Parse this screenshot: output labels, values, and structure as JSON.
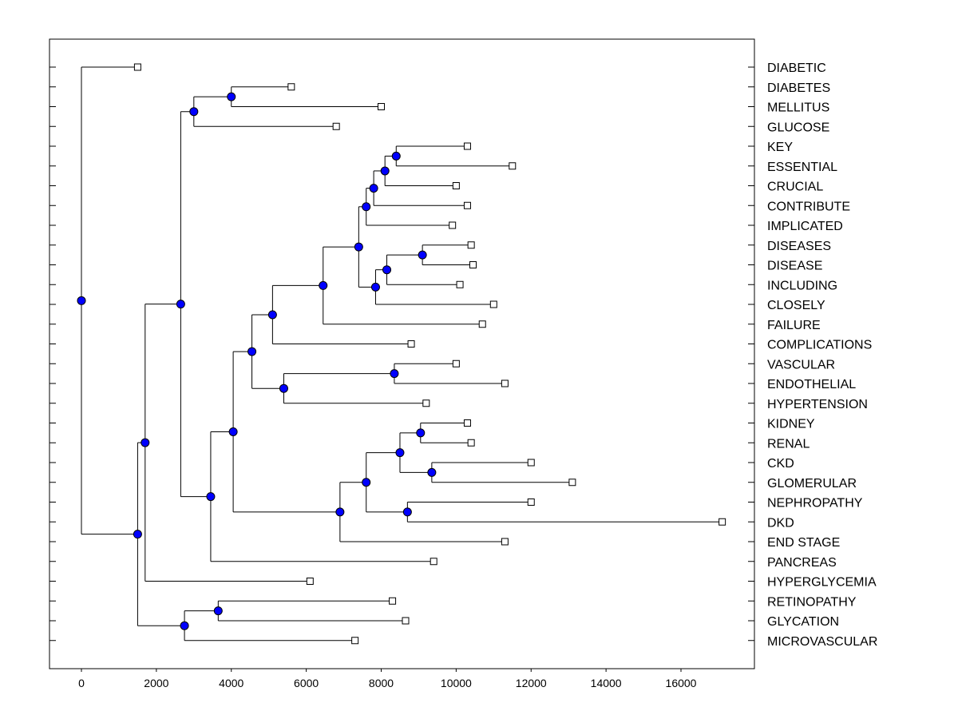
{
  "chart_data": {
    "type": "dendrogram",
    "title": "",
    "xlabel": "",
    "ylabel": "",
    "xlim": [
      -800,
      18000
    ],
    "x_ticks": [
      0,
      2000,
      4000,
      6000,
      8000,
      10000,
      12000,
      14000,
      16000
    ],
    "tick_labels": [
      "0",
      "2000",
      "4000",
      "6000",
      "8000",
      "10000",
      "12000",
      "14000",
      "16000"
    ],
    "leaves": [
      {
        "label": "DIABETIC",
        "value": 1500
      },
      {
        "label": "DIABETES",
        "value": 5600
      },
      {
        "label": "MELLITUS",
        "value": 8000
      },
      {
        "label": "GLUCOSE",
        "value": 6800
      },
      {
        "label": "KEY",
        "value": 10300
      },
      {
        "label": "ESSENTIAL",
        "value": 11500
      },
      {
        "label": "CRUCIAL",
        "value": 10000
      },
      {
        "label": "CONTRIBUTE",
        "value": 10300
      },
      {
        "label": "IMPLICATED",
        "value": 9900
      },
      {
        "label": "DISEASES",
        "value": 10400
      },
      {
        "label": "DISEASE",
        "value": 10450
      },
      {
        "label": "INCLUDING",
        "value": 10100
      },
      {
        "label": "CLOSELY",
        "value": 11000
      },
      {
        "label": "FAILURE",
        "value": 10700
      },
      {
        "label": "COMPLICATIONS",
        "value": 8800
      },
      {
        "label": "VASCULAR",
        "value": 10000
      },
      {
        "label": "ENDOTHELIAL",
        "value": 11300
      },
      {
        "label": "HYPERTENSION",
        "value": 9200
      },
      {
        "label": "KIDNEY",
        "value": 10300
      },
      {
        "label": "RENAL",
        "value": 10400
      },
      {
        "label": "CKD",
        "value": 12000
      },
      {
        "label": "GLOMERULAR",
        "value": 13100
      },
      {
        "label": "NEPHROPATHY",
        "value": 12000
      },
      {
        "label": "DKD",
        "value": 17100
      },
      {
        "label": "END STAGE",
        "value": 11300
      },
      {
        "label": "PANCREAS",
        "value": 9400
      },
      {
        "label": "HYPERGLYCEMIA",
        "value": 6100
      },
      {
        "label": "RETINOPATHY",
        "value": 8300
      },
      {
        "label": "GLYCATION",
        "value": 8650
      },
      {
        "label": "MICROVASCULAR",
        "value": 7300
      }
    ],
    "nodes": [
      {
        "id": "n_dm",
        "value": 4000,
        "children": [
          "L1",
          "L2"
        ]
      },
      {
        "id": "n_dmg",
        "value": 3000,
        "children": [
          "n_dm",
          "L3"
        ]
      },
      {
        "id": "n_ke",
        "value": 8400,
        "children": [
          "L4",
          "L5"
        ]
      },
      {
        "id": "n_kec",
        "value": 8100,
        "children": [
          "n_ke",
          "L6"
        ]
      },
      {
        "id": "n_kecc",
        "value": 7800,
        "children": [
          "n_kec",
          "L7"
        ]
      },
      {
        "id": "n_keci",
        "value": 7600,
        "children": [
          "n_kecc",
          "L8"
        ]
      },
      {
        "id": "n_dd",
        "value": 9100,
        "children": [
          "L9",
          "L10"
        ]
      },
      {
        "id": "n_ddi",
        "value": 8150,
        "children": [
          "n_dd",
          "L11"
        ]
      },
      {
        "id": "n_ddic",
        "value": 7850,
        "children": [
          "n_ddi",
          "L12"
        ]
      },
      {
        "id": "n_big1",
        "value": 7400,
        "children": [
          "n_keci",
          "n_ddic"
        ]
      },
      {
        "id": "n_big1f",
        "value": 6450,
        "children": [
          "n_big1",
          "L13"
        ]
      },
      {
        "id": "n_big1fc",
        "value": 5100,
        "children": [
          "n_big1f",
          "L14"
        ]
      },
      {
        "id": "n_ve",
        "value": 8350,
        "children": [
          "L15",
          "L16"
        ]
      },
      {
        "id": "n_veh",
        "value": 5400,
        "children": [
          "n_ve",
          "L17"
        ]
      },
      {
        "id": "n_mid",
        "value": 4550,
        "children": [
          "n_big1fc",
          "n_veh"
        ]
      },
      {
        "id": "n_kr",
        "value": 9050,
        "children": [
          "L18",
          "L19"
        ]
      },
      {
        "id": "n_cg",
        "value": 9350,
        "children": [
          "L20",
          "L21"
        ]
      },
      {
        "id": "n_krcg",
        "value": 8500,
        "children": [
          "n_kr",
          "n_cg"
        ]
      },
      {
        "id": "n_nd",
        "value": 8700,
        "children": [
          "L22",
          "L23"
        ]
      },
      {
        "id": "n_renal",
        "value": 7600,
        "children": [
          "n_krcg",
          "n_nd"
        ]
      },
      {
        "id": "n_renale",
        "value": 6900,
        "children": [
          "n_renal",
          "L24"
        ]
      },
      {
        "id": "n_midr",
        "value": 4050,
        "children": [
          "n_mid",
          "n_renale"
        ]
      },
      {
        "id": "n_midrp",
        "value": 3450,
        "children": [
          "n_midr",
          "L25"
        ]
      },
      {
        "id": "n_upper",
        "value": 2650,
        "children": [
          "n_dmg",
          "n_midrp"
        ]
      },
      {
        "id": "n_upperh",
        "value": 1700,
        "children": [
          "n_upper",
          "L26"
        ]
      },
      {
        "id": "n_rg",
        "value": 3650,
        "children": [
          "L27",
          "L28"
        ]
      },
      {
        "id": "n_rgm",
        "value": 2750,
        "children": [
          "n_rg",
          "L29"
        ]
      },
      {
        "id": "n_low",
        "value": 1500,
        "children": [
          "n_upperh",
          "n_rgm"
        ]
      },
      {
        "id": "n_root",
        "value": 0,
        "children": [
          "L0",
          "n_low"
        ]
      }
    ],
    "colors": {
      "node_fill": "#0000ff",
      "leaf_fill": "#ffffff",
      "line": "#000000"
    }
  }
}
